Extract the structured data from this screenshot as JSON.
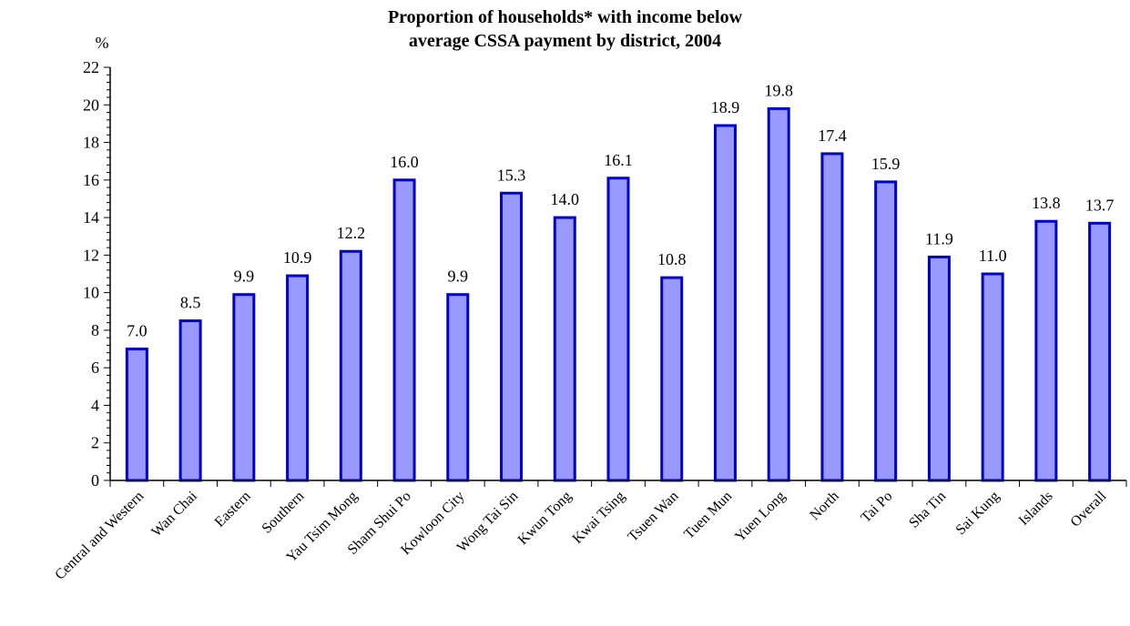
{
  "chart_data": {
    "type": "bar",
    "title_lines": [
      "Proportion of households* with income below",
      "average CSSA payment by district, 2004"
    ],
    "ylabel": "%",
    "xlabel": "",
    "ylim": [
      0,
      22
    ],
    "ytick_step": 2,
    "yticks": [
      "0",
      "2",
      "4",
      "6",
      "8",
      "10",
      "12",
      "14",
      "16",
      "18",
      "20",
      "22"
    ],
    "categories": [
      "Central and Western",
      "Wan Chai",
      "Eastern",
      "Southern",
      "Yau Tsim Mong",
      "Sham Shui Po",
      "Kowloon City",
      "Wong Tai Sin",
      "Kwun Tong",
      "Kwai Tsing",
      "Tsuen Wan",
      "Tuen Mun",
      "Yuen Long",
      "North",
      "Tai Po",
      "Sha Tin",
      "Sai Kung",
      "Islands",
      "Overall"
    ],
    "values": [
      7.0,
      8.5,
      9.9,
      10.9,
      12.2,
      16.0,
      9.9,
      15.3,
      14.0,
      16.1,
      10.8,
      18.9,
      19.8,
      17.4,
      15.9,
      11.9,
      11.0,
      13.8,
      13.7
    ],
    "value_labels": [
      "7.0",
      "8.5",
      "9.9",
      "10.9",
      "12.2",
      "16.0",
      "9.9",
      "15.3",
      "14.0",
      "16.1",
      "10.8",
      "18.9",
      "19.8",
      "17.4",
      "15.9",
      "11.9",
      "11.0",
      "13.8",
      "13.7"
    ],
    "grid": false,
    "legend": "none",
    "colors": {
      "bar_fill": "#9999ff",
      "bar_stroke": "#0000cc",
      "axis": "#000000"
    }
  }
}
